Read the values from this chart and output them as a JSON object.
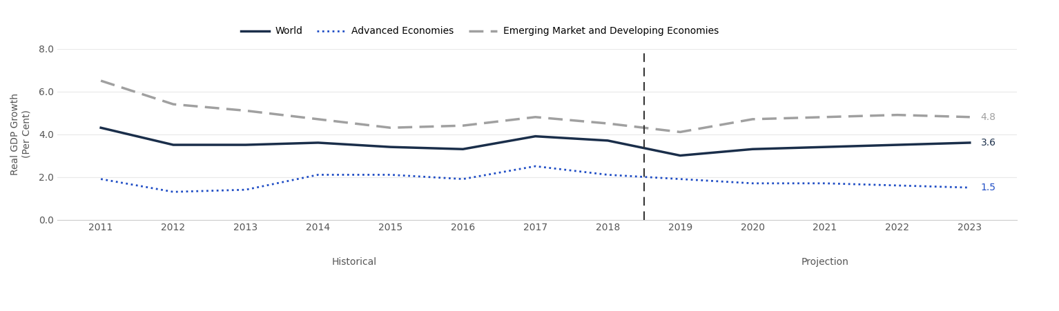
{
  "years": [
    2011,
    2012,
    2013,
    2014,
    2015,
    2016,
    2017,
    2018,
    2019,
    2020,
    2021,
    2022,
    2023
  ],
  "world": [
    4.3,
    3.5,
    3.5,
    3.6,
    3.4,
    3.3,
    3.9,
    3.7,
    3.0,
    3.3,
    3.4,
    3.5,
    3.6
  ],
  "advanced": [
    1.9,
    1.3,
    1.4,
    2.1,
    2.1,
    1.9,
    2.5,
    2.1,
    1.9,
    1.7,
    1.7,
    1.6,
    1.5
  ],
  "emerging": [
    6.5,
    5.4,
    5.1,
    4.7,
    4.3,
    4.4,
    4.8,
    4.5,
    4.1,
    4.7,
    4.8,
    4.9,
    4.8
  ],
  "world_color": "#1a2e4a",
  "advanced_color": "#1f4dc5",
  "emerging_color": "#a0a0a0",
  "divider_year": 2018.5,
  "ylim": [
    0.0,
    8.0
  ],
  "yticks": [
    0.0,
    2.0,
    4.0,
    6.0,
    8.0
  ],
  "world_end_label": "3.6",
  "advanced_end_label": "1.5",
  "emerging_end_label": "4.8",
  "legend_world": "World",
  "legend_advanced": "Advanced Economies",
  "legend_emerging": "Emerging Market and Developing Economies",
  "ylabel": "Real GDP Growth\n(Per Cent)",
  "historical_label": "Historical",
  "projection_label": "Projection",
  "background_color": "#ffffff",
  "plot_bg_color": "#ffffff",
  "spine_color": "#cccccc",
  "grid_color": "#e8e8e8"
}
